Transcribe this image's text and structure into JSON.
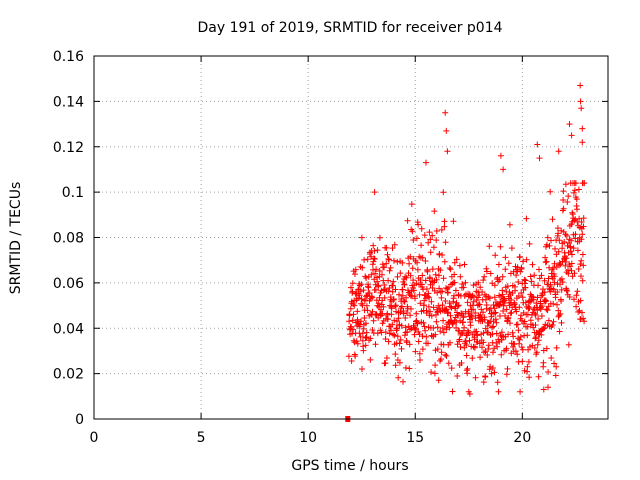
{
  "chart_data": {
    "type": "scatter",
    "title": "Day 191 of 2019, SRMTID for receiver p014",
    "xlabel": "GPS time / hours",
    "ylabel": "SRMTID / TECUs",
    "xlim": [
      0,
      24
    ],
    "ylim": [
      0,
      0.16
    ],
    "xticks": [
      0,
      5,
      10,
      15,
      20
    ],
    "xtick_labels": [
      "0",
      "5",
      "10",
      "15",
      "20"
    ],
    "yticks": [
      0,
      0.02,
      0.04,
      0.06,
      0.08,
      0.1,
      0.12,
      0.14,
      0.16
    ],
    "ytick_labels": [
      "0",
      "0.02",
      "0.04",
      "0.06",
      "0.08",
      "0.1",
      "0.12",
      "0.14",
      "0.16"
    ],
    "grid": true,
    "marker": "plus",
    "color": "#ff0000",
    "zero_marker": {
      "x": 11.85,
      "y": 0
    },
    "series": [
      {
        "name": "p014",
        "x_start": 11.9,
        "x_end": 22.9,
        "x_step": 0.0098,
        "profile": [
          {
            "x": 11.9,
            "mean": 0.045,
            "spread": 0.012
          },
          {
            "x": 12.5,
            "mean": 0.052,
            "spread": 0.014
          },
          {
            "x": 13.0,
            "mean": 0.054,
            "spread": 0.016
          },
          {
            "x": 14.0,
            "mean": 0.05,
            "spread": 0.015
          },
          {
            "x": 15.0,
            "mean": 0.053,
            "spread": 0.017
          },
          {
            "x": 16.0,
            "mean": 0.058,
            "spread": 0.02
          },
          {
            "x": 16.5,
            "mean": 0.055,
            "spread": 0.021
          },
          {
            "x": 17.0,
            "mean": 0.045,
            "spread": 0.016
          },
          {
            "x": 18.0,
            "mean": 0.04,
            "spread": 0.014
          },
          {
            "x": 19.0,
            "mean": 0.047,
            "spread": 0.017
          },
          {
            "x": 20.0,
            "mean": 0.05,
            "spread": 0.018
          },
          {
            "x": 21.0,
            "mean": 0.048,
            "spread": 0.017
          },
          {
            "x": 22.0,
            "mean": 0.072,
            "spread": 0.022
          },
          {
            "x": 22.9,
            "mean": 0.085,
            "spread": 0.022
          }
        ],
        "outliers": [
          {
            "x": 16.4,
            "y": 0.135
          },
          {
            "x": 16.45,
            "y": 0.127
          },
          {
            "x": 16.5,
            "y": 0.118
          },
          {
            "x": 15.5,
            "y": 0.113
          },
          {
            "x": 13.1,
            "y": 0.1
          },
          {
            "x": 19.0,
            "y": 0.116
          },
          {
            "x": 19.1,
            "y": 0.11
          },
          {
            "x": 20.7,
            "y": 0.121
          },
          {
            "x": 20.8,
            "y": 0.115
          },
          {
            "x": 21.7,
            "y": 0.118
          },
          {
            "x": 22.2,
            "y": 0.13
          },
          {
            "x": 22.3,
            "y": 0.125
          },
          {
            "x": 22.7,
            "y": 0.147
          },
          {
            "x": 22.72,
            "y": 0.14
          },
          {
            "x": 22.75,
            "y": 0.137
          },
          {
            "x": 22.8,
            "y": 0.128
          },
          {
            "x": 22.8,
            "y": 0.122
          },
          {
            "x": 17.5,
            "y": 0.012
          },
          {
            "x": 17.55,
            "y": 0.011
          },
          {
            "x": 21.0,
            "y": 0.013
          },
          {
            "x": 21.2,
            "y": 0.014
          }
        ]
      }
    ]
  }
}
